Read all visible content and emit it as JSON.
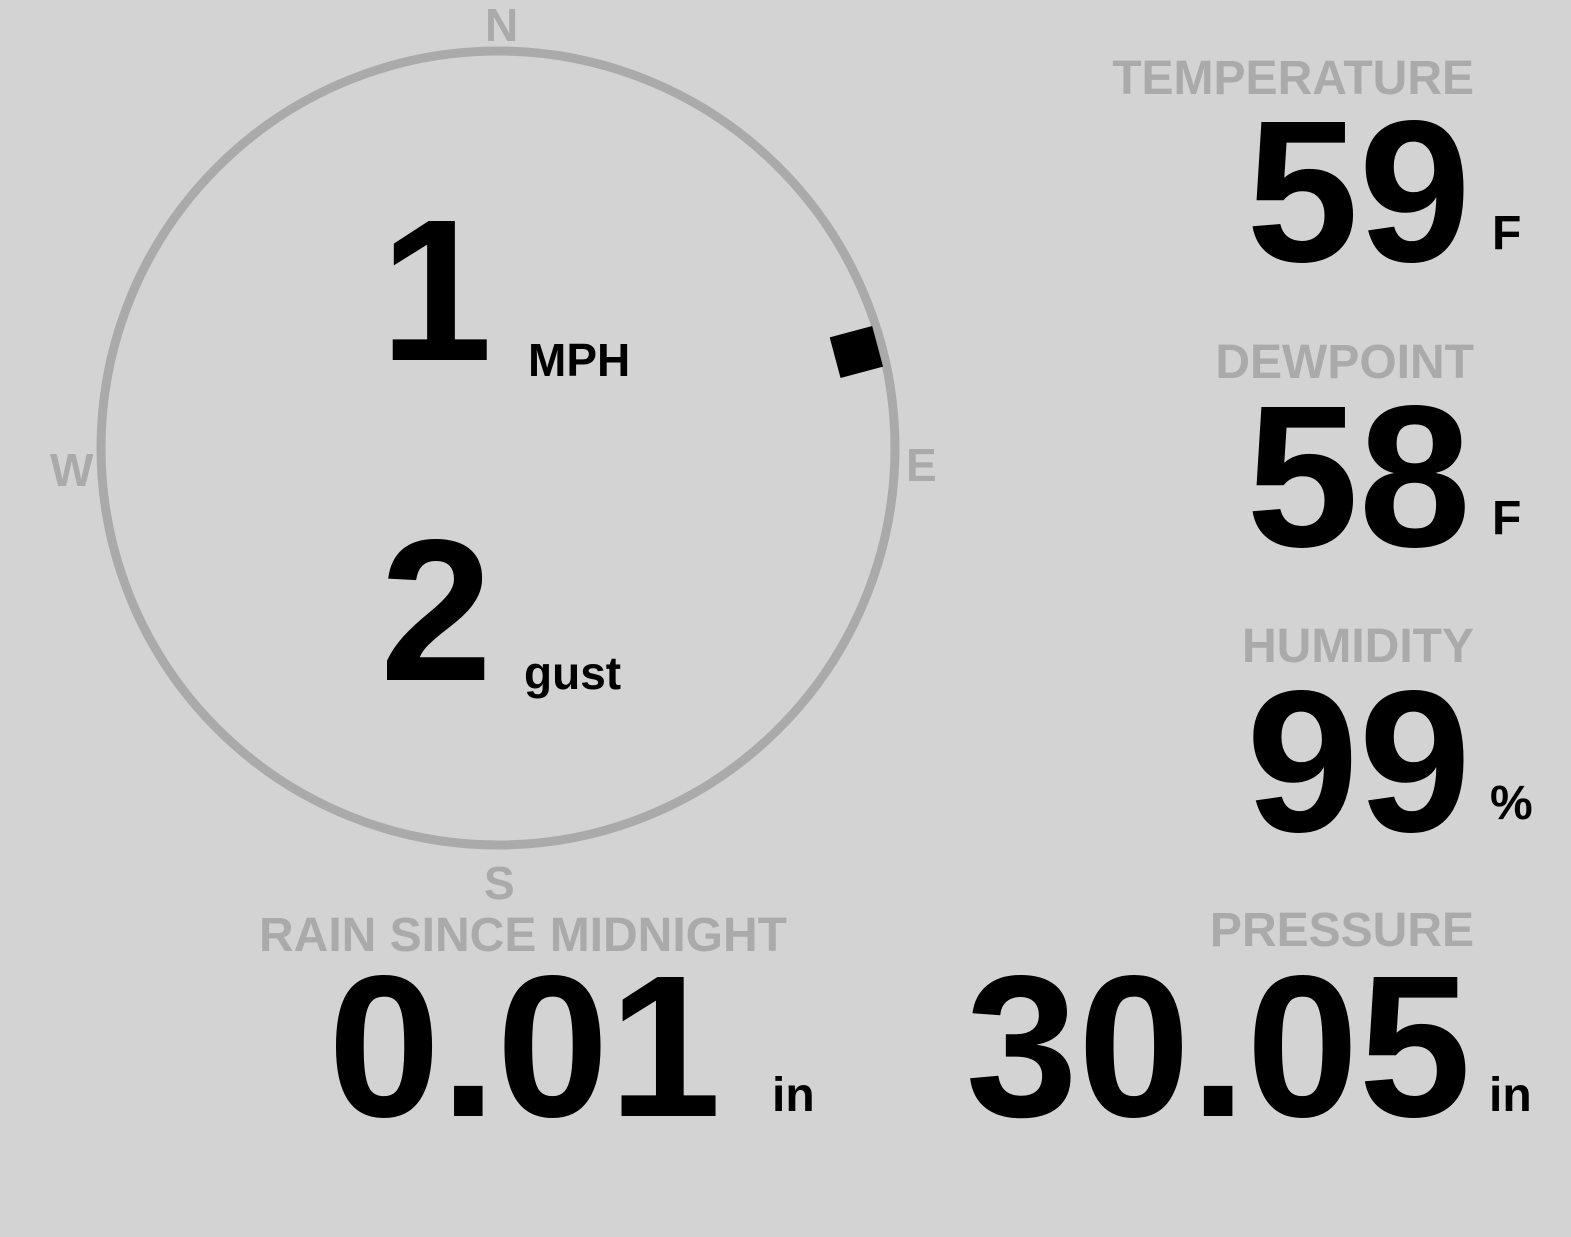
{
  "colors": {
    "background": "#d3d3d3",
    "label": "#aaaaaa",
    "value": "#000000"
  },
  "wind": {
    "cardinals": {
      "n": "N",
      "e": "E",
      "s": "S",
      "w": "W"
    },
    "speed": "1",
    "speed_unit": "MPH",
    "gust": "2",
    "gust_unit": "gust",
    "direction_degrees": 75
  },
  "temperature": {
    "label": "TEMPERATURE",
    "value": "59",
    "unit": "F"
  },
  "dewpoint": {
    "label": "DEWPOINT",
    "value": "58",
    "unit": "F"
  },
  "humidity": {
    "label": "HUMIDITY",
    "value": "99",
    "unit": "%"
  },
  "rain": {
    "label": "RAIN SINCE MIDNIGHT",
    "value": "0.01",
    "unit": "in"
  },
  "pressure": {
    "label": "PRESSURE",
    "value": "30.05",
    "unit": "in"
  }
}
